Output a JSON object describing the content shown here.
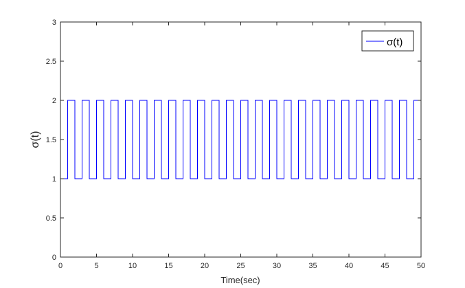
{
  "chart_data": {
    "type": "line",
    "title": "",
    "xlabel": "Time(sec)",
    "ylabel": "σ(t)",
    "xlim": [
      0,
      50
    ],
    "ylim": [
      0,
      3
    ],
    "xticks": [
      0,
      5,
      10,
      15,
      20,
      25,
      30,
      35,
      40,
      45,
      50
    ],
    "xtick_labels": [
      "0",
      "5",
      "10",
      "15",
      "20",
      "25",
      "30",
      "35",
      "40",
      "45",
      "50"
    ],
    "yticks": [
      0,
      0.5,
      1,
      1.5,
      2,
      2.5,
      3
    ],
    "ytick_labels": [
      "0",
      "0.5",
      "1",
      "1.5",
      "2",
      "2.5",
      "3"
    ],
    "grid": false,
    "legend": {
      "position": "top-right",
      "entries": [
        "σ(t)"
      ]
    },
    "series": [
      {
        "name": "σ(t)",
        "color": "#0000ff",
        "line_style": "step",
        "x": [
          0,
          1,
          2,
          3,
          4,
          5,
          6,
          7,
          8,
          9,
          10,
          11,
          12,
          13,
          14,
          15,
          16,
          17,
          18,
          19,
          20,
          21,
          22,
          23,
          24,
          25,
          26,
          27,
          28,
          29,
          30,
          31,
          32,
          33,
          34,
          35,
          36,
          37,
          38,
          39,
          40,
          41,
          42,
          43,
          44,
          45,
          46,
          47,
          48,
          49,
          50
        ],
        "y": [
          1,
          2,
          1,
          2,
          1,
          2,
          1,
          2,
          1,
          2,
          1,
          2,
          1,
          2,
          1,
          2,
          1,
          2,
          1,
          2,
          1,
          2,
          1,
          2,
          1,
          2,
          1,
          2,
          1,
          2,
          1,
          2,
          1,
          2,
          1,
          2,
          1,
          2,
          1,
          2,
          1,
          2,
          1,
          2,
          1,
          2,
          1,
          2,
          1,
          2,
          2
        ]
      }
    ]
  }
}
